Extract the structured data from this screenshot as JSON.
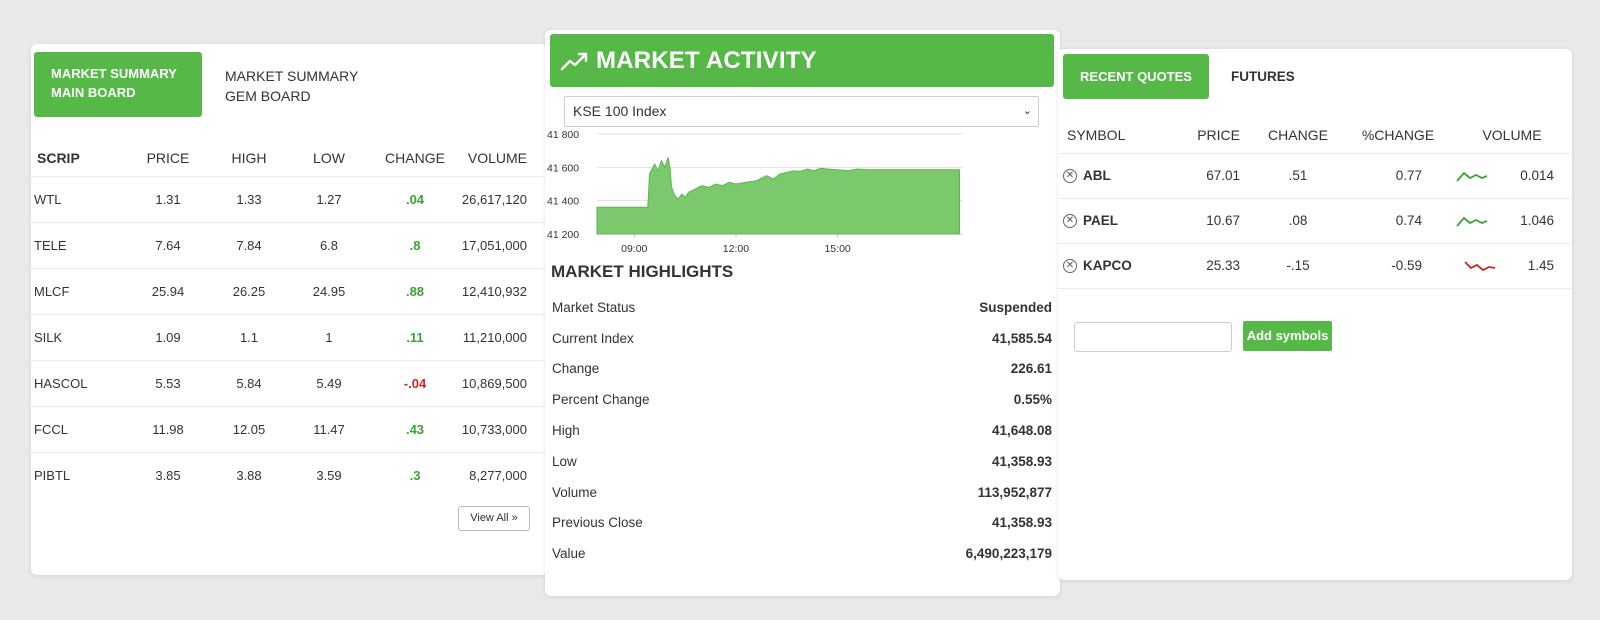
{
  "left": {
    "tabs": [
      {
        "line1": "MARKET SUMMARY",
        "line2": "MAIN BOARD"
      },
      {
        "line1": "MARKET SUMMARY",
        "line2": "GEM BOARD"
      }
    ],
    "columns": [
      "SCRIP",
      "PRICE",
      "HIGH",
      "LOW",
      "CHANGE",
      "VOLUME"
    ],
    "rows": [
      {
        "scrip": "WTL",
        "price": "1.31",
        "high": "1.33",
        "low": "1.27",
        "change": ".04",
        "volume": "26,617,120",
        "dir": "up"
      },
      {
        "scrip": "TELE",
        "price": "7.64",
        "high": "7.84",
        "low": "6.8",
        "change": ".8",
        "volume": "17,051,000",
        "dir": "up"
      },
      {
        "scrip": "MLCF",
        "price": "25.94",
        "high": "26.25",
        "low": "24.95",
        "change": ".88",
        "volume": "12,410,932",
        "dir": "up"
      },
      {
        "scrip": "SILK",
        "price": "1.09",
        "high": "1.1",
        "low": "1",
        "change": ".11",
        "volume": "11,210,000",
        "dir": "up"
      },
      {
        "scrip": "HASCOL",
        "price": "5.53",
        "high": "5.84",
        "low": "5.49",
        "change": "-.04",
        "volume": "10,869,500",
        "dir": "down"
      },
      {
        "scrip": "FCCL",
        "price": "11.98",
        "high": "12.05",
        "low": "11.47",
        "change": ".43",
        "volume": "10,733,000",
        "dir": "up"
      },
      {
        "scrip": "PIBTL",
        "price": "3.85",
        "high": "3.88",
        "low": "3.59",
        "change": ".3",
        "volume": "8,277,000",
        "dir": "up"
      }
    ],
    "view_all": "View All"
  },
  "center": {
    "title": "MARKET ACTIVITY",
    "select_value": "KSE 100 Index",
    "highlights_title": "MARKET HIGHLIGHTS",
    "highlights": [
      {
        "label": "Market Status",
        "value": "Suspended"
      },
      {
        "label": "Current Index",
        "value": "41,585.54"
      },
      {
        "label": "Change",
        "value": "226.61"
      },
      {
        "label": "Percent Change",
        "value": "0.55%"
      },
      {
        "label": "High",
        "value": "41,648.08"
      },
      {
        "label": "Low",
        "value": "41,358.93"
      },
      {
        "label": "Volume",
        "value": "113,952,877"
      },
      {
        "label": "Previous Close",
        "value": "41,358.93"
      },
      {
        "label": "Value",
        "value": "6,490,223,179"
      }
    ]
  },
  "chart_data": {
    "type": "area",
    "title": "",
    "xlabel": "",
    "ylabel": "",
    "y_ticks": [
      "41 800",
      "41 600",
      "41 400",
      "41 200"
    ],
    "y_tick_values": [
      41800,
      41600,
      41400,
      41200
    ],
    "x_ticks": [
      "09:00",
      "12:00",
      "15:00"
    ],
    "x_tick_hours": [
      9,
      12,
      15
    ],
    "ylim": [
      41200,
      41800
    ],
    "xlim_hours": [
      7.9,
      18.7
    ],
    "x": [
      7.9,
      9.4,
      9.45,
      9.6,
      9.7,
      9.8,
      9.9,
      10.0,
      10.05,
      10.1,
      10.2,
      10.3,
      10.4,
      10.5,
      10.6,
      10.7,
      10.8,
      11.0,
      11.2,
      11.4,
      11.6,
      11.8,
      12.0,
      12.3,
      12.6,
      12.9,
      13.1,
      13.3,
      13.5,
      13.7,
      13.9,
      14.1,
      14.3,
      14.5,
      14.7,
      15.0,
      15.3,
      15.6,
      15.9,
      16.2,
      16.6,
      17.0,
      17.5,
      18.0,
      18.6
    ],
    "y": [
      41360,
      41360,
      41560,
      41620,
      41580,
      41640,
      41600,
      41660,
      41600,
      41480,
      41430,
      41410,
      41440,
      41420,
      41450,
      41460,
      41470,
      41490,
      41480,
      41500,
      41490,
      41510,
      41500,
      41510,
      41520,
      41550,
      41530,
      41560,
      41570,
      41580,
      41575,
      41590,
      41580,
      41595,
      41590,
      41585,
      41580,
      41590,
      41585,
      41585,
      41585,
      41585,
      41585,
      41585,
      41585
    ],
    "colors": {
      "fill": "#7cc86c",
      "stroke": "#5db64f"
    },
    "grid": true
  },
  "right": {
    "tabs": [
      "RECENT QUOTES",
      "FUTURES"
    ],
    "columns": [
      "SYMBOL",
      "PRICE",
      "CHANGE",
      "%CHANGE",
      "VOLUME"
    ],
    "rows": [
      {
        "symbol": "ABL",
        "price": "67.01",
        "change": ".51",
        "pct": "0.77",
        "volume": "0.014",
        "trend": "up"
      },
      {
        "symbol": "PAEL",
        "price": "10.67",
        "change": ".08",
        "pct": "0.74",
        "volume": "1.046",
        "trend": "up"
      },
      {
        "symbol": "KAPCO",
        "price": "25.33",
        "change": "-.15",
        "pct": "-0.59",
        "volume": "1.45",
        "trend": "down"
      }
    ],
    "add_button": "Add symbols",
    "input_value": ""
  },
  "colors": {
    "accent": "#56b847",
    "positive": "#3aa336",
    "negative": "#d32424"
  }
}
